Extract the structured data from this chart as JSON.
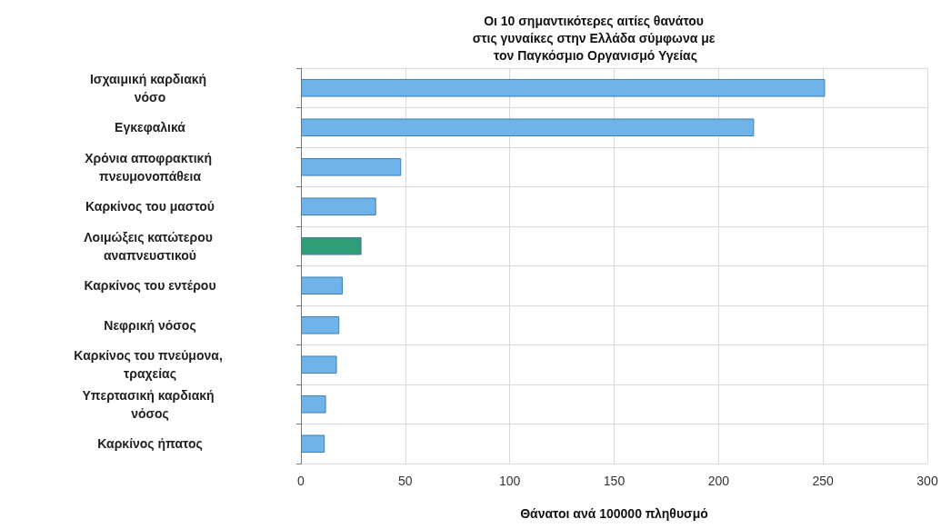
{
  "chart_data": {
    "type": "bar",
    "orientation": "horizontal",
    "title": "Οι 10 σημαντικότερες αιτίες θανάτου στις γυναίκες στην Ελλάδα σύμφωνα με τον Παγκόσμιο Οργανισμό Υγείας",
    "xlabel": "Θάνατοι ανά 100000 πληθυσμό",
    "categories": [
      "Ισχαιμική καρδιακή νόσο",
      "Εγκεφαλικά",
      "Χρόνια αποφρακτική πνευμονοπάθεια",
      "Καρκίνος του μαστού",
      "Λοιμώξεις κατώτερου αναπνευστικού",
      "Καρκίνος του εντέρου",
      "Νεφρική νόσος",
      "Καρκίνος του πνεύμονα, τραχείας",
      "Υπερτασική καρδιακή νόσος",
      "Καρκίνος ήπατος"
    ],
    "values": [
      251,
      217,
      48,
      36,
      29,
      20,
      18.4,
      17.2,
      12,
      11.4
    ],
    "colors": [
      "#6fb3e8",
      "#6fb3e8",
      "#6fb3e8",
      "#6fb3e8",
      "#2f9e77",
      "#6fb3e8",
      "#6fb3e8",
      "#6fb3e8",
      "#6fb3e8",
      "#6fb3e8"
    ],
    "xlim": [
      0,
      300
    ],
    "xticks": [
      0,
      50,
      100,
      150,
      200,
      250,
      300
    ],
    "grid": true
  }
}
